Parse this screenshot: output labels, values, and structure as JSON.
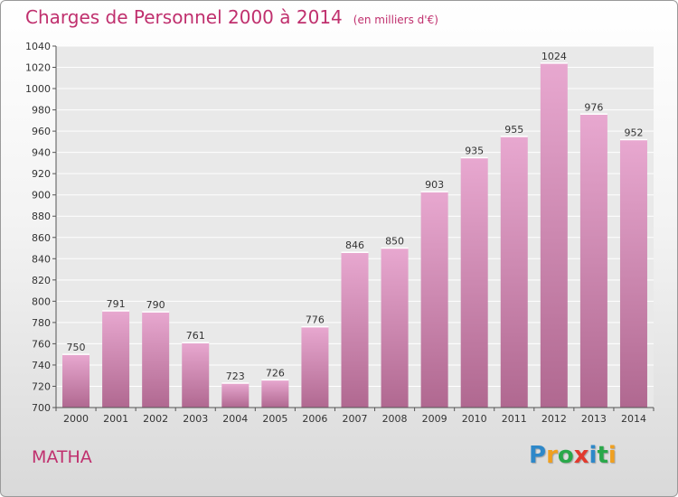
{
  "title": "Charges de Personnel 2000 à 2014",
  "subtitle": "(en milliers d'€)",
  "town": "MATHA",
  "logo": {
    "letters": [
      "P",
      "r",
      "o",
      "x",
      "i",
      "t",
      "i"
    ],
    "colors": [
      "#2e88c9",
      "#f0a020",
      "#2aa84a",
      "#e23a2e",
      "#2e88c9",
      "#2aa84a",
      "#f0a020"
    ]
  },
  "colors": {
    "accent": "#c0306e",
    "bar_top": "#e8a8d0",
    "bar_bottom": "#b06890"
  },
  "chart_data": {
    "type": "bar",
    "title": "Charges de Personnel 2000 à 2014",
    "subtitle": "(en milliers d'€)",
    "xlabel": "",
    "ylabel": "",
    "categories": [
      "2000",
      "2001",
      "2002",
      "2003",
      "2004",
      "2005",
      "2006",
      "2007",
      "2008",
      "2009",
      "2010",
      "2011",
      "2012",
      "2013",
      "2014"
    ],
    "values": [
      750,
      791,
      790,
      761,
      723,
      726,
      776,
      846,
      850,
      903,
      935,
      955,
      1024,
      976,
      952
    ],
    "ylim": [
      700,
      1040
    ],
    "yticks": [
      700,
      720,
      740,
      760,
      780,
      800,
      820,
      840,
      860,
      880,
      900,
      920,
      940,
      960,
      980,
      1000,
      1020,
      1040
    ],
    "grid": true,
    "legend": "none"
  }
}
